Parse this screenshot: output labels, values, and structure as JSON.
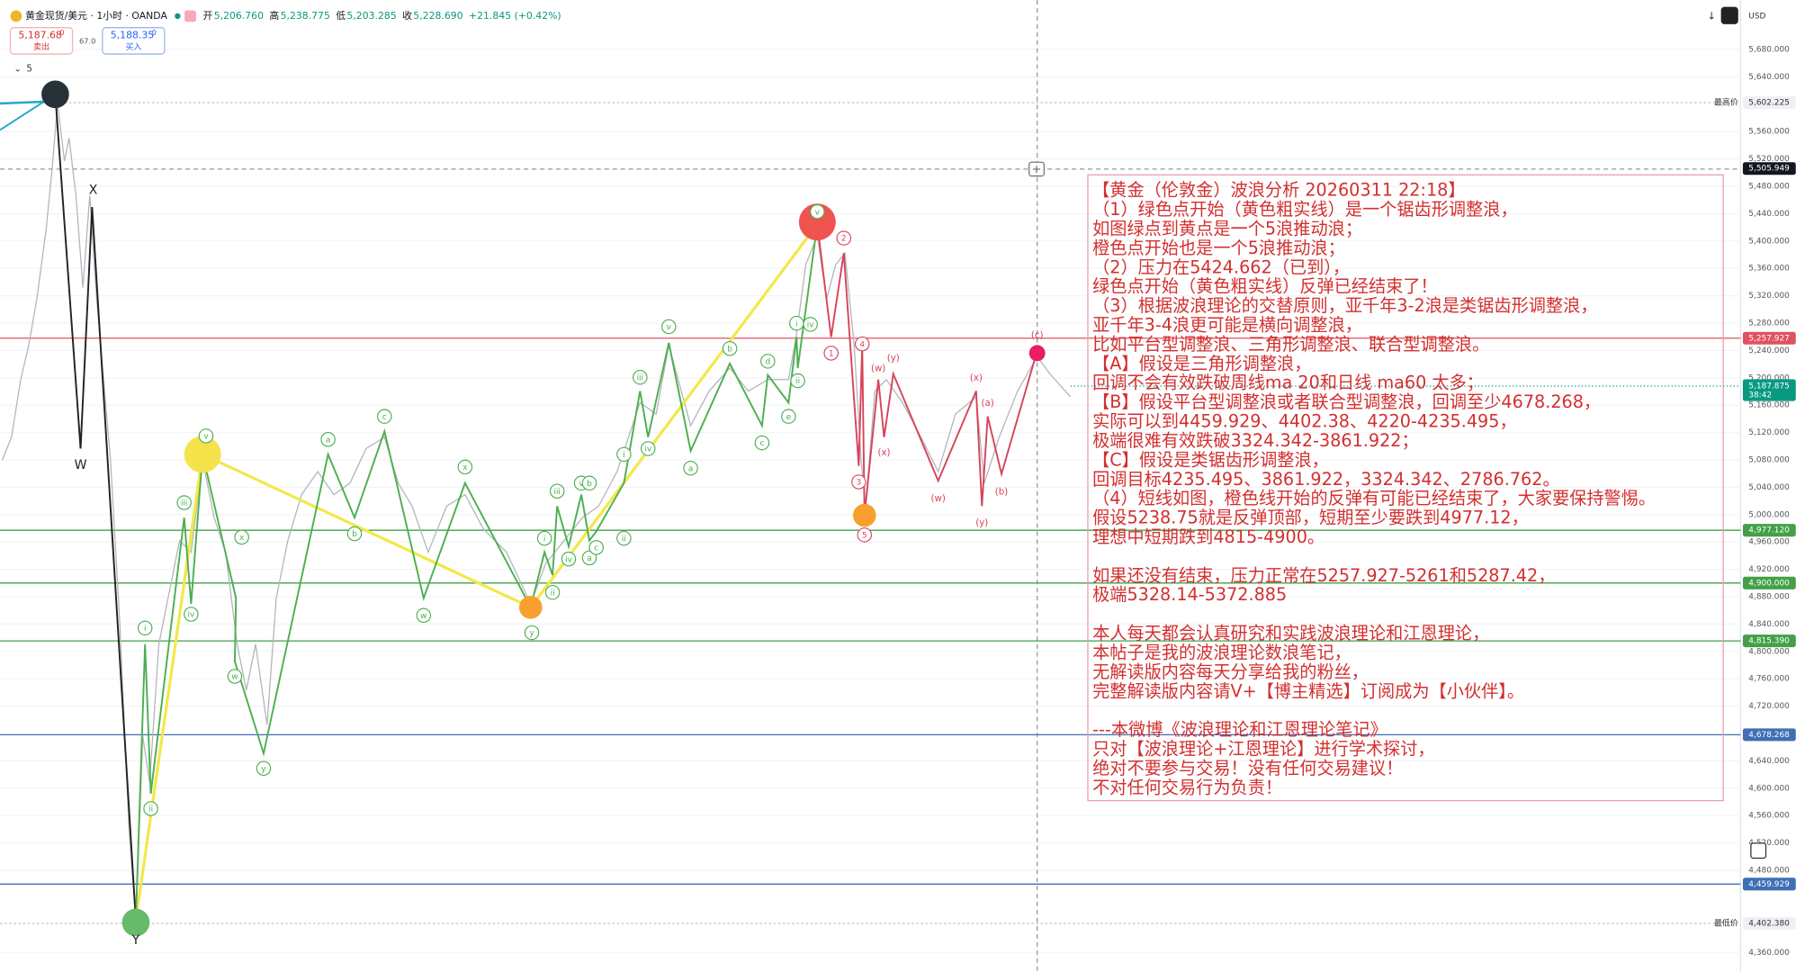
{
  "header": {
    "symbol": "黄金现货/美元 · 1小时 · OANDA",
    "quotes": [
      {
        "label": "开",
        "value": "5,206.760"
      },
      {
        "label": "高",
        "value": "5,238.775"
      },
      {
        "label": "低",
        "value": "5,203.285"
      },
      {
        "label": "收",
        "value": "5,228.690"
      }
    ],
    "change": "+21.845 (+0.42%)"
  },
  "trade": {
    "sell_price": "5,187.68",
    "sell_sup": "0",
    "sell_label": "卖出",
    "spread": "67.0",
    "buy_price": "5,188.35",
    "buy_sup": "0",
    "buy_label": "买入"
  },
  "indicator_toggle": "5",
  "currency": "USD",
  "price_axis": {
    "ylim": [
      4331.4,
      5752.3
    ],
    "yticks": [
      {
        "value": 5680,
        "label": "5,680.000"
      },
      {
        "value": 5640,
        "label": "5,640.000"
      },
      {
        "value": 5560,
        "label": "5,560.000"
      },
      {
        "value": 5520,
        "label": "5,520.000"
      },
      {
        "value": 5480,
        "label": "5,480.000"
      },
      {
        "value": 5440,
        "label": "5,440.000"
      },
      {
        "value": 5400,
        "label": "5,400.000"
      },
      {
        "value": 5360,
        "label": "5,360.000"
      },
      {
        "value": 5320,
        "label": "5,320.000"
      },
      {
        "value": 5280,
        "label": "5,280.000"
      },
      {
        "value": 5240,
        "label": "5,240.000"
      },
      {
        "value": 5200,
        "label": "5,200.000"
      },
      {
        "value": 5160,
        "label": "5,160.000"
      },
      {
        "value": 5120,
        "label": "5,120.000"
      },
      {
        "value": 5080,
        "label": "5,080.000"
      },
      {
        "value": 5040,
        "label": "5,040.000"
      },
      {
        "value": 5000,
        "label": "5,000.000"
      },
      {
        "value": 4960,
        "label": "4,960.000"
      },
      {
        "value": 4920,
        "label": "4,920.000"
      },
      {
        "value": 4880,
        "label": "4,880.000"
      },
      {
        "value": 4840,
        "label": "4,840.000"
      },
      {
        "value": 4800,
        "label": "4,800.000"
      },
      {
        "value": 4760,
        "label": "4,760.000"
      },
      {
        "value": 4720,
        "label": "4,720.000"
      },
      {
        "value": 4640,
        "label": "4,640.000"
      },
      {
        "value": 4600,
        "label": "4,600.000"
      },
      {
        "value": 4560,
        "label": "4,560.000"
      },
      {
        "value": 4520,
        "label": "4,520.000"
      },
      {
        "value": 4480,
        "label": "4,480.000"
      },
      {
        "value": 4360,
        "label": "4,360.000"
      }
    ]
  },
  "levels": [
    {
      "value": 5257.927,
      "label": "5,257.927",
      "color": "#e05260"
    },
    {
      "value": 4977.12,
      "label": "4,977.120",
      "color": "#43a047"
    },
    {
      "value": 4900,
      "label": "4,900.000",
      "color": "#43a047"
    },
    {
      "value": 4815.39,
      "label": "4,815.390",
      "color": "#43a047"
    },
    {
      "value": 4678.268,
      "label": "4,678.268",
      "color": "#3f6fb5"
    },
    {
      "value": 4459.929,
      "label": "4,459.929",
      "color": "#3f6fb5"
    }
  ],
  "high": {
    "name": "最高价",
    "value": 5602.225,
    "label": "5,602.225"
  },
  "low": {
    "name": "最低价",
    "value": 4402.38,
    "label": "4,402.380"
  },
  "crosshair": {
    "value": 5505.949,
    "label": "5,505.949"
  },
  "current": {
    "value": 5187.875,
    "label": "5,187.875",
    "countdown": "38:42",
    "color": "#089981"
  },
  "wave_labels": [
    {
      "text": "X",
      "color": "#222"
    },
    {
      "text": "W",
      "color": "#222"
    },
    {
      "text": "Y",
      "color": "#222"
    },
    {
      "text": "i",
      "color": "#4caf50"
    },
    {
      "text": "ii",
      "color": "#4caf50"
    },
    {
      "text": "iii",
      "color": "#4caf50"
    },
    {
      "text": "iv",
      "color": "#4caf50"
    },
    {
      "text": "v",
      "color": "#4caf50"
    },
    {
      "text": "x",
      "color": "#4caf50"
    },
    {
      "text": "w",
      "color": "#4caf50"
    },
    {
      "text": "y",
      "color": "#4caf50"
    },
    {
      "text": "a",
      "color": "#4caf50"
    },
    {
      "text": "b",
      "color": "#4caf50"
    },
    {
      "text": "c",
      "color": "#4caf50"
    },
    {
      "text": "x",
      "color": "#4caf50"
    },
    {
      "text": "w",
      "color": "#4caf50"
    },
    {
      "text": "y",
      "color": "#4caf50"
    },
    {
      "text": "i",
      "color": "#4caf50"
    },
    {
      "text": "ii",
      "color": "#4caf50"
    },
    {
      "text": "iii",
      "color": "#4caf50"
    },
    {
      "text": "iv",
      "color": "#4caf50"
    },
    {
      "text": "v",
      "color": "#4caf50"
    },
    {
      "text": "a",
      "color": "#4caf50"
    },
    {
      "text": "b",
      "color": "#4caf50"
    },
    {
      "text": "c",
      "color": "#4caf50"
    },
    {
      "text": "i",
      "color": "#4caf50"
    },
    {
      "text": "ii",
      "color": "#4caf50"
    },
    {
      "text": "iii",
      "color": "#4caf50"
    },
    {
      "text": "iv",
      "color": "#4caf50"
    },
    {
      "text": "v",
      "color": "#4caf50"
    },
    {
      "text": "a",
      "color": "#4caf50"
    },
    {
      "text": "b",
      "color": "#4caf50"
    },
    {
      "text": "c",
      "color": "#4caf50"
    },
    {
      "text": "d",
      "color": "#4caf50"
    },
    {
      "text": "e",
      "color": "#4caf50"
    },
    {
      "text": "i",
      "color": "#4caf50"
    },
    {
      "text": "ii",
      "color": "#4caf50"
    },
    {
      "text": "iv",
      "color": "#4caf50"
    },
    {
      "text": "v",
      "color": "#4caf50"
    },
    {
      "text": "1",
      "color": "#d6455a"
    },
    {
      "text": "2",
      "color": "#d6455a"
    },
    {
      "text": "3",
      "color": "#d6455a"
    },
    {
      "text": "4",
      "color": "#d6455a"
    },
    {
      "text": "5",
      "color": "#d6455a"
    },
    {
      "text": "(w)",
      "color": "#d6455a"
    },
    {
      "text": "(x)",
      "color": "#d6455a"
    },
    {
      "text": "(y)",
      "color": "#d6455a"
    },
    {
      "text": "(w)",
      "color": "#d6455a"
    },
    {
      "text": "(x)",
      "color": "#d6455a"
    },
    {
      "text": "(a)",
      "color": "#d6455a"
    },
    {
      "text": "(y)",
      "color": "#d6455a"
    },
    {
      "text": "(b)",
      "color": "#d6455a"
    },
    {
      "text": "(c)",
      "color": "#d6455a"
    }
  ],
  "note": {
    "paragraphs": [
      [
        "【黄金（伦敦金）波浪分析 20260311 22:18】",
        "（1）绿色点开始（黄色粗实线）是一个锯齿形调整浪，",
        "如图绿点到黄点是一个5浪推动浪；",
        "橙色点开始也是一个5浪推动浪；",
        "（2）压力在5424.662（已到），",
        "绿色点开始（黄色粗实线）反弹已经结束了！",
        "（3）根据波浪理论的交替原则，亚千年3-2浪是类锯齿形调整浪，",
        "亚千年3-4浪更可能是横向调整浪，",
        "比如平台型调整浪、三角形调整浪、联合型调整浪。",
        "【A】假设是三角形调整浪，",
        "回调不会有效跌破周线ma 20和日线 ma60 太多；",
        "【B】假设平台型调整浪或者联合型调整浪，回调至少4678.268，",
        "实际可以到4459.929、4402.38、4220-4235.495，",
        "极端很难有效跌破3324.342-3861.922；",
        "【C】假设是类锯齿形调整浪，",
        "回调目标4235.495、3861.922，3324.342、2786.762。",
        "（4）短线如图，橙色线开始的反弹有可能已经结束了，大家要保持警惕。",
        "假设5238.75就是反弹顶部，短期至少要跌到4977.12，",
        "理想中短期跌到4815-4900。"
      ],
      [
        "如果还没有结束，压力正常在5257.927-5261和5287.42，",
        "极端5328.14-5372.885"
      ],
      [
        "本人每天都会认真研究和实践波浪理论和江恩理论，",
        "本帖子是我的波浪理论数浪笔记，",
        "无解读版内容每天分享给我的粉丝，",
        "完整解读版内容请V+【博主精选】订阅成为【小伙伴】。"
      ],
      [
        "---本微博《波浪理论和江恩理论笔记》",
        "只对【波浪理论+江恩理论】进行学术探讨，",
        "绝对不要参与交易！没有任何交易建议！",
        "不对任何交易行为负责！"
      ]
    ],
    "color": "#d32f2f"
  }
}
